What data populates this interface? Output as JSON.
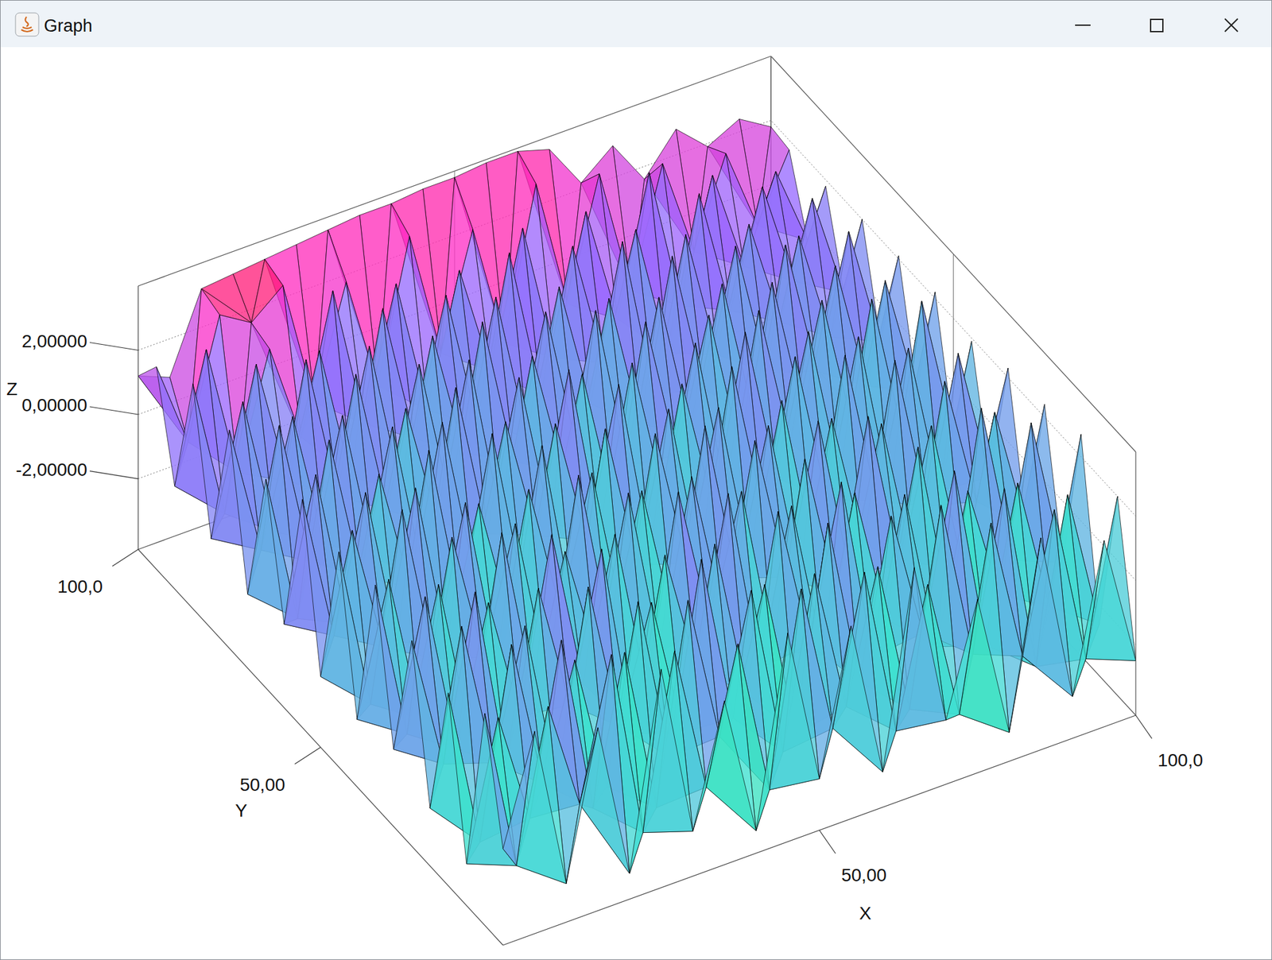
{
  "chart_data": {
    "type": "surface3d",
    "title": "Graph",
    "xlabel": "X",
    "ylabel": "Y",
    "zlabel": "Z",
    "x": [
      0,
      5,
      10,
      15,
      20,
      25,
      30,
      35,
      40,
      45,
      50,
      55,
      60,
      65,
      70,
      75,
      80,
      85,
      90,
      95,
      100
    ],
    "y": [
      0,
      5,
      10,
      15,
      20,
      25,
      30,
      35,
      40,
      45,
      50,
      55,
      60,
      65,
      70,
      75,
      80,
      85,
      90,
      95,
      100
    ],
    "z": [
      [
        -1.2,
        2.1,
        -3.0,
        1.5,
        -3.4,
        2.6,
        -2.8,
        0.9,
        -3.5,
        2.3,
        -2.6,
        1.8,
        -3.1,
        2.9,
        -2.2,
        1.2,
        -3.3,
        2.4,
        -2.9,
        1.6,
        -2.5
      ],
      [
        2.4,
        -2.7,
        1.9,
        -1.5,
        2.8,
        -3.1,
        2.2,
        -2.4,
        1.7,
        -3.2,
        2.7,
        -2.0,
        2.5,
        -2.8,
        1.4,
        -3.0,
        2.6,
        -1.9,
        2.3,
        -2.7,
        2.0
      ],
      [
        -2.9,
        1.3,
        -2.2,
        3.0,
        -2.6,
        1.9,
        -3.3,
        2.8,
        -1.8,
        2.4,
        -3.0,
        2.2,
        -2.3,
        1.7,
        -3.1,
        2.9,
        -2.1,
        2.7,
        -3.2,
        1.8,
        -2.6
      ],
      [
        1.8,
        -3.2,
        2.6,
        -2.1,
        1.4,
        -2.9,
        2.5,
        -2.7,
        3.1,
        -2.2,
        1.6,
        -3.4,
        2.8,
        -2.5,
        2.3,
        -1.7,
        3.0,
        -2.8,
        1.9,
        -2.3,
        2.7
      ],
      [
        -2.4,
        2.9,
        -1.7,
        2.2,
        -3.0,
        2.7,
        -2.0,
        1.5,
        -2.9,
        2.6,
        -2.4,
        2.9,
        -1.6,
        3.1,
        -2.7,
        2.0,
        -3.1,
        1.4,
        -2.2,
        2.8,
        -1.9
      ],
      [
        2.2,
        -2.0,
        3.0,
        -2.8,
        2.4,
        -1.6,
        2.9,
        -3.2,
        2.0,
        -1.9,
        3.2,
        -2.6,
        2.1,
        -2.9,
        1.8,
        -2.5,
        2.5,
        -2.9,
        3.0,
        -2.1,
        2.4
      ],
      [
        -1.8,
        2.6,
        -2.5,
        1.7,
        -2.2,
        3.1,
        -1.9,
        2.4,
        -2.8,
        3.0,
        -1.5,
        2.3,
        -3.0,
        2.6,
        -2.0,
        3.2,
        -1.8,
        2.2,
        -2.6,
        1.9,
        -2.0
      ],
      [
        2.7,
        -2.3,
        2.0,
        -3.0,
        2.9,
        -2.4,
        1.6,
        -2.1,
        2.7,
        -2.6,
        2.5,
        -2.2,
        2.9,
        -1.7,
        2.8,
        -2.3,
        2.0,
        -2.7,
        2.6,
        -1.5,
        2.3
      ],
      [
        -2.1,
        1.9,
        -2.8,
        2.5,
        -1.6,
        2.2,
        -2.9,
        3.0,
        -2.3,
        1.8,
        -2.7,
        3.1,
        -2.0,
        2.4,
        -2.6,
        1.9,
        -2.4,
        3.0,
        -1.9,
        2.5,
        -1.7
      ],
      [
        2.5,
        -2.6,
        3.1,
        -1.9,
        2.6,
        -2.7,
        2.3,
        -1.8,
        2.1,
        -2.9,
        2.6,
        -1.8,
        2.7,
        -2.5,
        2.2,
        -2.8,
        2.9,
        -2.0,
        2.4,
        -2.4,
        1.9
      ],
      [
        -2.0,
        2.2,
        -1.8,
        2.8,
        -2.5,
        1.6,
        -2.4,
        2.7,
        -3.0,
        2.5,
        -2.1,
        2.4,
        -2.8,
        3.0,
        -1.9,
        2.6,
        -2.2,
        2.5,
        -2.7,
        2.9,
        -1.6
      ],
      [
        2.9,
        -1.7,
        2.4,
        -2.6,
        3.0,
        -2.2,
        2.8,
        -2.5,
        2.4,
        -1.6,
        2.9,
        -2.7,
        2.2,
        -2.0,
        3.1,
        -1.8,
        2.4,
        -2.5,
        2.7,
        -2.0,
        2.2
      ],
      [
        -1.6,
        2.7,
        -2.3,
        2.0,
        -1.9,
        2.9,
        -2.1,
        2.2,
        -1.7,
        3.1,
        -2.4,
        2.6,
        -1.9,
        2.5,
        -2.6,
        2.8,
        -1.7,
        2.4,
        -2.0,
        2.3,
        -1.5
      ],
      [
        2.3,
        -2.4,
        2.8,
        -1.8,
        2.5,
        -2.6,
        3.0,
        -1.9,
        2.6,
        -2.3,
        2.0,
        -2.5,
        2.9,
        -1.6,
        2.4,
        -2.2,
        2.7,
        -1.8,
        2.5,
        -1.6,
        2.1
      ],
      [
        -1.9,
        3.0,
        -1.6,
        2.6,
        -2.2,
        2.1,
        -1.8,
        2.9,
        -2.4,
        2.3,
        -1.7,
        3.0,
        -2.2,
        2.7,
        -1.8,
        2.4,
        -2.1,
        2.9,
        -1.4,
        2.6,
        -1.2
      ],
      [
        2.6,
        -1.5,
        2.3,
        -2.0,
        2.9,
        -1.7,
        2.5,
        -2.2,
        3.1,
        -1.6,
        2.7,
        -2.0,
        2.4,
        -1.9,
        3.0,
        -1.5,
        2.6,
        -1.7,
        2.2,
        -1.3,
        2.0
      ],
      [
        -1.4,
        2.5,
        -1.9,
        3.1,
        -1.5,
        2.8,
        -2.0,
        2.4,
        -1.6,
        2.9,
        -1.8,
        2.5,
        -1.5,
        3.2,
        -1.9,
        2.7,
        -1.4,
        2.3,
        -1.1,
        2.4,
        -0.9
      ],
      [
        2.8,
        -1.6,
        2.7,
        -1.3,
        2.4,
        -1.9,
        3.0,
        -1.4,
        2.7,
        -1.7,
        3.3,
        -1.5,
        2.8,
        -1.2,
        2.6,
        -1.6,
        3.0,
        -1.0,
        2.5,
        -0.8,
        1.8
      ],
      [
        -1.0,
        2.9,
        -1.3,
        2.2,
        -0.9,
        3.3,
        -1.2,
        2.8,
        -1.5,
        2.5,
        -1.0,
        3.1,
        -1.3,
        2.9,
        -0.8,
        3.4,
        -1.1,
        2.6,
        -0.6,
        2.0,
        -0.5
      ],
      [
        2.1,
        -0.6,
        3.0,
        2.4,
        3.2,
        -0.8,
        2.6,
        -1.0,
        3.3,
        -0.7,
        2.8,
        -1.1,
        3.5,
        -0.6,
        3.1,
        -0.9,
        2.7,
        -0.4,
        2.3,
        -0.3,
        1.7
      ],
      [
        1.2,
        0.8,
        3.2,
        3.3,
        3.4,
        3.5,
        3.6,
        3.7,
        3.7,
        3.8,
        3.8,
        3.9,
        3.9,
        3.6,
        2.2,
        3.0,
        1.6,
        2.8,
        1.9,
        2.4,
        1.8
      ]
    ],
    "xlim": [
      0,
      100
    ],
    "ylim": [
      0,
      100
    ],
    "zlim": [
      -4.2,
      4.0
    ],
    "xticks": [
      {
        "value": 50,
        "label": "50,00"
      },
      {
        "value": 100,
        "label": "100,0"
      }
    ],
    "yticks": [
      {
        "value": 50,
        "label": "50,00"
      },
      {
        "value": 100,
        "label": "100,0"
      }
    ],
    "zticks": [
      {
        "value": -2,
        "label": "-2,00000"
      },
      {
        "value": 0,
        "label": "0,00000"
      },
      {
        "value": 2,
        "label": "2,00000"
      }
    ],
    "grid": true
  }
}
